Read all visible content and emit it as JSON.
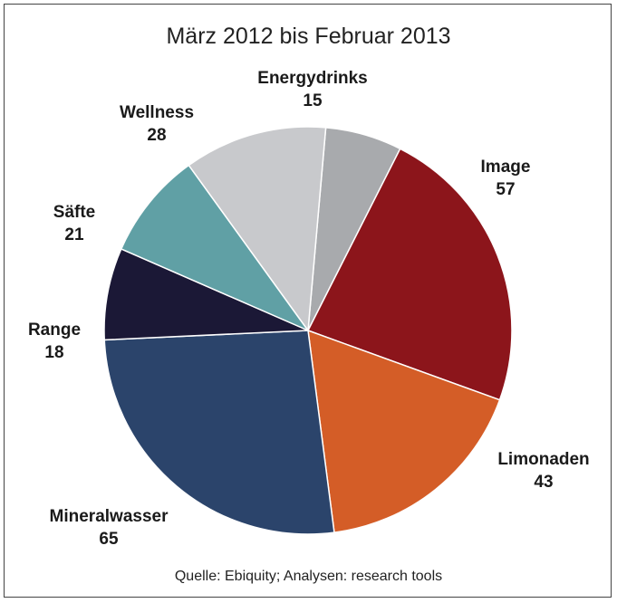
{
  "chart_data": {
    "type": "pie",
    "title": "März 2012 bis Februar 2013",
    "source": "Quelle: Ebiquity; Analysen: research tools",
    "slices": [
      {
        "label": "Energydrinks",
        "value": 15,
        "color": "#a8aaad"
      },
      {
        "label": "Image",
        "value": 57,
        "color": "#8c151b"
      },
      {
        "label": "Limonaden",
        "value": 43,
        "color": "#d45d27"
      },
      {
        "label": "Mineralwasser",
        "value": 65,
        "color": "#2b446b"
      },
      {
        "label": "Range",
        "value": 18,
        "color": "#1b1836"
      },
      {
        "label": "Säfte",
        "value": 21,
        "color": "#60a0a5"
      },
      {
        "label": "Wellness",
        "value": 28,
        "color": "#c8c9cc"
      }
    ]
  }
}
